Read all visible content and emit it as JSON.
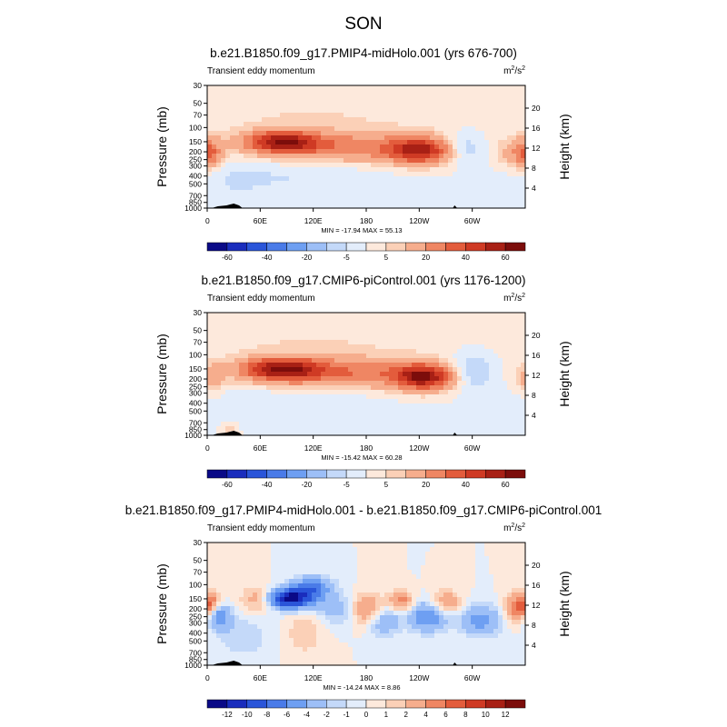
{
  "page_title": "SON",
  "chart_data": [
    {
      "type": "heatmap",
      "title": "b.e21.B1850.f09_g17.PMIP4-midHolo.001 (yrs 676-700)",
      "subtitle": "Transient eddy momentum",
      "units_base": "m",
      "units_sup1": "2",
      "units_mid": "/s",
      "units_sup2": "2",
      "ylabel": "Pressure (mb)",
      "ylabel_right": "Height (km)",
      "xlabel": "",
      "x_ticks": [
        "0",
        "60E",
        "120E",
        "180",
        "120W",
        "60W"
      ],
      "x_tick_lon": [
        0,
        60,
        120,
        180,
        240,
        300
      ],
      "xlim": [
        0,
        360
      ],
      "y_ticks": [
        "30",
        "50",
        "70",
        "100",
        "150",
        "200",
        "250",
        "300",
        "400",
        "500",
        "700",
        "850",
        "1000"
      ],
      "y_tick_mb": [
        30,
        50,
        70,
        100,
        150,
        200,
        250,
        300,
        400,
        500,
        700,
        850,
        1000
      ],
      "ylim": [
        1000,
        30
      ],
      "height_ticks": [
        "4",
        "8",
        "12",
        "16",
        "20"
      ],
      "height_tick_km": [
        4,
        8,
        12,
        16,
        20
      ],
      "stats": "MIN = -17.94  MAX =  55.13",
      "min": -17.94,
      "max": 55.13,
      "levels": [
        -70,
        -60,
        -50,
        -40,
        -30,
        -20,
        -10,
        -5,
        0,
        5,
        10,
        20,
        30,
        40,
        50,
        60,
        70
      ],
      "colorbar_labels": [
        "-60",
        "-40",
        "-20",
        "-5",
        "5",
        "20",
        "40",
        "60"
      ],
      "colorbar_label_pos": [
        1,
        3,
        5,
        7,
        9,
        11,
        13,
        15
      ],
      "colors": [
        "#0a0a87",
        "#1a2dbd",
        "#2a55d9",
        "#4a7be8",
        "#6e9ff2",
        "#9dbff7",
        "#c4d9f9",
        "#e3edfb",
        "#fde9dc",
        "#fbd0b7",
        "#f6ad8d",
        "#ef8663",
        "#e35c3c",
        "#cf3a24",
        "#a82015",
        "#7c0d0b"
      ],
      "features": [
        {
          "lon": 85,
          "p": 150,
          "amp": 50,
          "wlon": 28,
          "wp": 0.22
        },
        {
          "lon": 160,
          "p": 175,
          "amp": 26,
          "wlon": 70,
          "wp": 0.3
        },
        {
          "lon": 240,
          "p": 195,
          "amp": 47,
          "wlon": 24,
          "wp": 0.25
        },
        {
          "lon": 4,
          "p": 210,
          "amp": 24,
          "wlon": 9,
          "wp": 0.28
        },
        {
          "lon": 290,
          "p": 180,
          "amp": -14,
          "wlon": 16,
          "wp": 0.3
        },
        {
          "lon": 350,
          "p": 210,
          "amp": 16,
          "wlon": 14,
          "wp": 0.3
        },
        {
          "lon": 120,
          "p": 70,
          "amp": 5,
          "wlon": 110,
          "wp": 0.5
        },
        {
          "lon": 100,
          "p": 400,
          "amp": -5,
          "wlon": 70,
          "wp": 0.4
        },
        {
          "lon": 28,
          "p": 500,
          "amp": -3,
          "wlon": 30,
          "wp": 0.5
        }
      ]
    },
    {
      "type": "heatmap",
      "title": "b.e21.B1850.f09_g17.CMIP6-piControl.001 (yrs 1176-1200)",
      "subtitle": "Transient eddy momentum",
      "units_base": "m",
      "units_sup1": "2",
      "units_mid": "/s",
      "units_sup2": "2",
      "ylabel": "Pressure (mb)",
      "ylabel_right": "Height (km)",
      "xlabel": "",
      "x_ticks": [
        "0",
        "60E",
        "120E",
        "180",
        "120W",
        "60W"
      ],
      "x_tick_lon": [
        0,
        60,
        120,
        180,
        240,
        300
      ],
      "xlim": [
        0,
        360
      ],
      "y_ticks": [
        "30",
        "50",
        "70",
        "100",
        "150",
        "200",
        "250",
        "300",
        "400",
        "500",
        "700",
        "850",
        "1000"
      ],
      "y_tick_mb": [
        30,
        50,
        70,
        100,
        150,
        200,
        250,
        300,
        400,
        500,
        700,
        850,
        1000
      ],
      "ylim": [
        1000,
        30
      ],
      "height_ticks": [
        "4",
        "8",
        "12",
        "16",
        "20"
      ],
      "height_tick_km": [
        4,
        8,
        12,
        16,
        20
      ],
      "stats": "MIN = -15.42  MAX =  60.28",
      "min": -15.42,
      "max": 60.28,
      "levels": [
        -70,
        -60,
        -50,
        -40,
        -30,
        -20,
        -10,
        -5,
        0,
        5,
        10,
        20,
        30,
        40,
        50,
        60,
        70
      ],
      "colorbar_labels": [
        "-60",
        "-40",
        "-20",
        "-5",
        "5",
        "20",
        "40",
        "60"
      ],
      "colorbar_label_pos": [
        1,
        3,
        5,
        7,
        9,
        11,
        13,
        15
      ],
      "colors": [
        "#0a0a87",
        "#1a2dbd",
        "#2a55d9",
        "#4a7be8",
        "#6e9ff2",
        "#9dbff7",
        "#c4d9f9",
        "#e3edfb",
        "#fde9dc",
        "#fbd0b7",
        "#f6ad8d",
        "#ef8663",
        "#e35c3c",
        "#cf3a24",
        "#a82015",
        "#7c0d0b"
      ],
      "features": [
        {
          "lon": 85,
          "p": 150,
          "amp": 52,
          "wlon": 30,
          "wp": 0.22
        },
        {
          "lon": 160,
          "p": 170,
          "amp": 28,
          "wlon": 75,
          "wp": 0.3
        },
        {
          "lon": 245,
          "p": 190,
          "amp": 52,
          "wlon": 22,
          "wp": 0.25
        },
        {
          "lon": 5,
          "p": 200,
          "amp": 14,
          "wlon": 9,
          "wp": 0.28
        },
        {
          "lon": 300,
          "p": 160,
          "amp": -16,
          "wlon": 18,
          "wp": 0.35
        },
        {
          "lon": 120,
          "p": 70,
          "amp": 5,
          "wlon": 110,
          "wp": 0.5
        },
        {
          "lon": 100,
          "p": 400,
          "amp": -5,
          "wlon": 70,
          "wp": 0.4
        },
        {
          "lon": 25,
          "p": 850,
          "amp": 8,
          "wlon": 6,
          "wp": 0.12
        }
      ]
    },
    {
      "type": "heatmap",
      "title": "b.e21.B1850.f09_g17.PMIP4-midHolo.001 - b.e21.B1850.f09_g17.CMIP6-piControl.001",
      "subtitle": "Transient eddy momentum",
      "units_base": "m",
      "units_sup1": "2",
      "units_mid": "/s",
      "units_sup2": "2",
      "ylabel": "Pressure (mb)",
      "ylabel_right": "Height (km)",
      "xlabel": "",
      "x_ticks": [
        "0",
        "60E",
        "120E",
        "180",
        "120W",
        "60W"
      ],
      "x_tick_lon": [
        0,
        60,
        120,
        180,
        240,
        300
      ],
      "xlim": [
        0,
        360
      ],
      "y_ticks": [
        "30",
        "50",
        "70",
        "100",
        "150",
        "200",
        "250",
        "300",
        "400",
        "500",
        "700",
        "850",
        "1000"
      ],
      "y_tick_mb": [
        30,
        50,
        70,
        100,
        150,
        200,
        250,
        300,
        400,
        500,
        700,
        850,
        1000
      ],
      "ylim": [
        1000,
        30
      ],
      "height_ticks": [
        "4",
        "8",
        "12",
        "16",
        "20"
      ],
      "height_tick_km": [
        4,
        8,
        12,
        16,
        20
      ],
      "stats": "MIN = -14.24  MAX =   8.86",
      "min": -14.24,
      "max": 8.86,
      "levels": [
        -14,
        -12,
        -10,
        -8,
        -6,
        -4,
        -2,
        -1,
        0,
        1,
        2,
        4,
        6,
        8,
        10,
        12,
        14
      ],
      "colorbar_labels": [
        "-12",
        "-10",
        "-8",
        "-6",
        "-4",
        "-2",
        "-1",
        "0",
        "1",
        "2",
        "4",
        "6",
        "8",
        "10",
        "12"
      ],
      "colorbar_label_pos": [
        1,
        2,
        3,
        4,
        5,
        6,
        7,
        8,
        9,
        10,
        11,
        12,
        13,
        14,
        15
      ],
      "colors": [
        "#0a0a87",
        "#1a2dbd",
        "#2a55d9",
        "#4a7be8",
        "#6e9ff2",
        "#9dbff7",
        "#c4d9f9",
        "#e3edfb",
        "#fde9dc",
        "#fbd0b7",
        "#f6ad8d",
        "#ef8663",
        "#e35c3c",
        "#cf3a24",
        "#a82015",
        "#7c0d0b"
      ],
      "features": [
        {
          "lon": 92,
          "p": 150,
          "amp": -13,
          "wlon": 18,
          "wp": 0.2
        },
        {
          "lon": 118,
          "p": 110,
          "amp": -7,
          "wlon": 16,
          "wp": 0.22
        },
        {
          "lon": 12,
          "p": 250,
          "amp": -6,
          "wlon": 10,
          "wp": 0.25
        },
        {
          "lon": 4,
          "p": 170,
          "amp": 5,
          "wlon": 7,
          "wp": 0.2
        },
        {
          "lon": 60,
          "p": 150,
          "amp": 4,
          "wlon": 14,
          "wp": 0.25
        },
        {
          "lon": 180,
          "p": 200,
          "amp": 5,
          "wlon": 14,
          "wp": 0.3
        },
        {
          "lon": 220,
          "p": 160,
          "amp": 5,
          "wlon": 10,
          "wp": 0.2
        },
        {
          "lon": 200,
          "p": 280,
          "amp": -4,
          "wlon": 12,
          "wp": 0.3
        },
        {
          "lon": 250,
          "p": 250,
          "amp": -6,
          "wlon": 16,
          "wp": 0.3
        },
        {
          "lon": 270,
          "p": 170,
          "amp": 4,
          "wlon": 12,
          "wp": 0.25
        },
        {
          "lon": 310,
          "p": 280,
          "amp": -5,
          "wlon": 16,
          "wp": 0.3
        },
        {
          "lon": 352,
          "p": 200,
          "amp": 6,
          "wlon": 10,
          "wp": 0.3
        },
        {
          "lon": 150,
          "p": 200,
          "amp": -3,
          "wlon": 18,
          "wp": 0.3
        },
        {
          "lon": 40,
          "p": 450,
          "amp": -2,
          "wlon": 20,
          "wp": 0.4
        },
        {
          "lon": 110,
          "p": 400,
          "amp": 2,
          "wlon": 14,
          "wp": 0.4
        }
      ]
    }
  ]
}
